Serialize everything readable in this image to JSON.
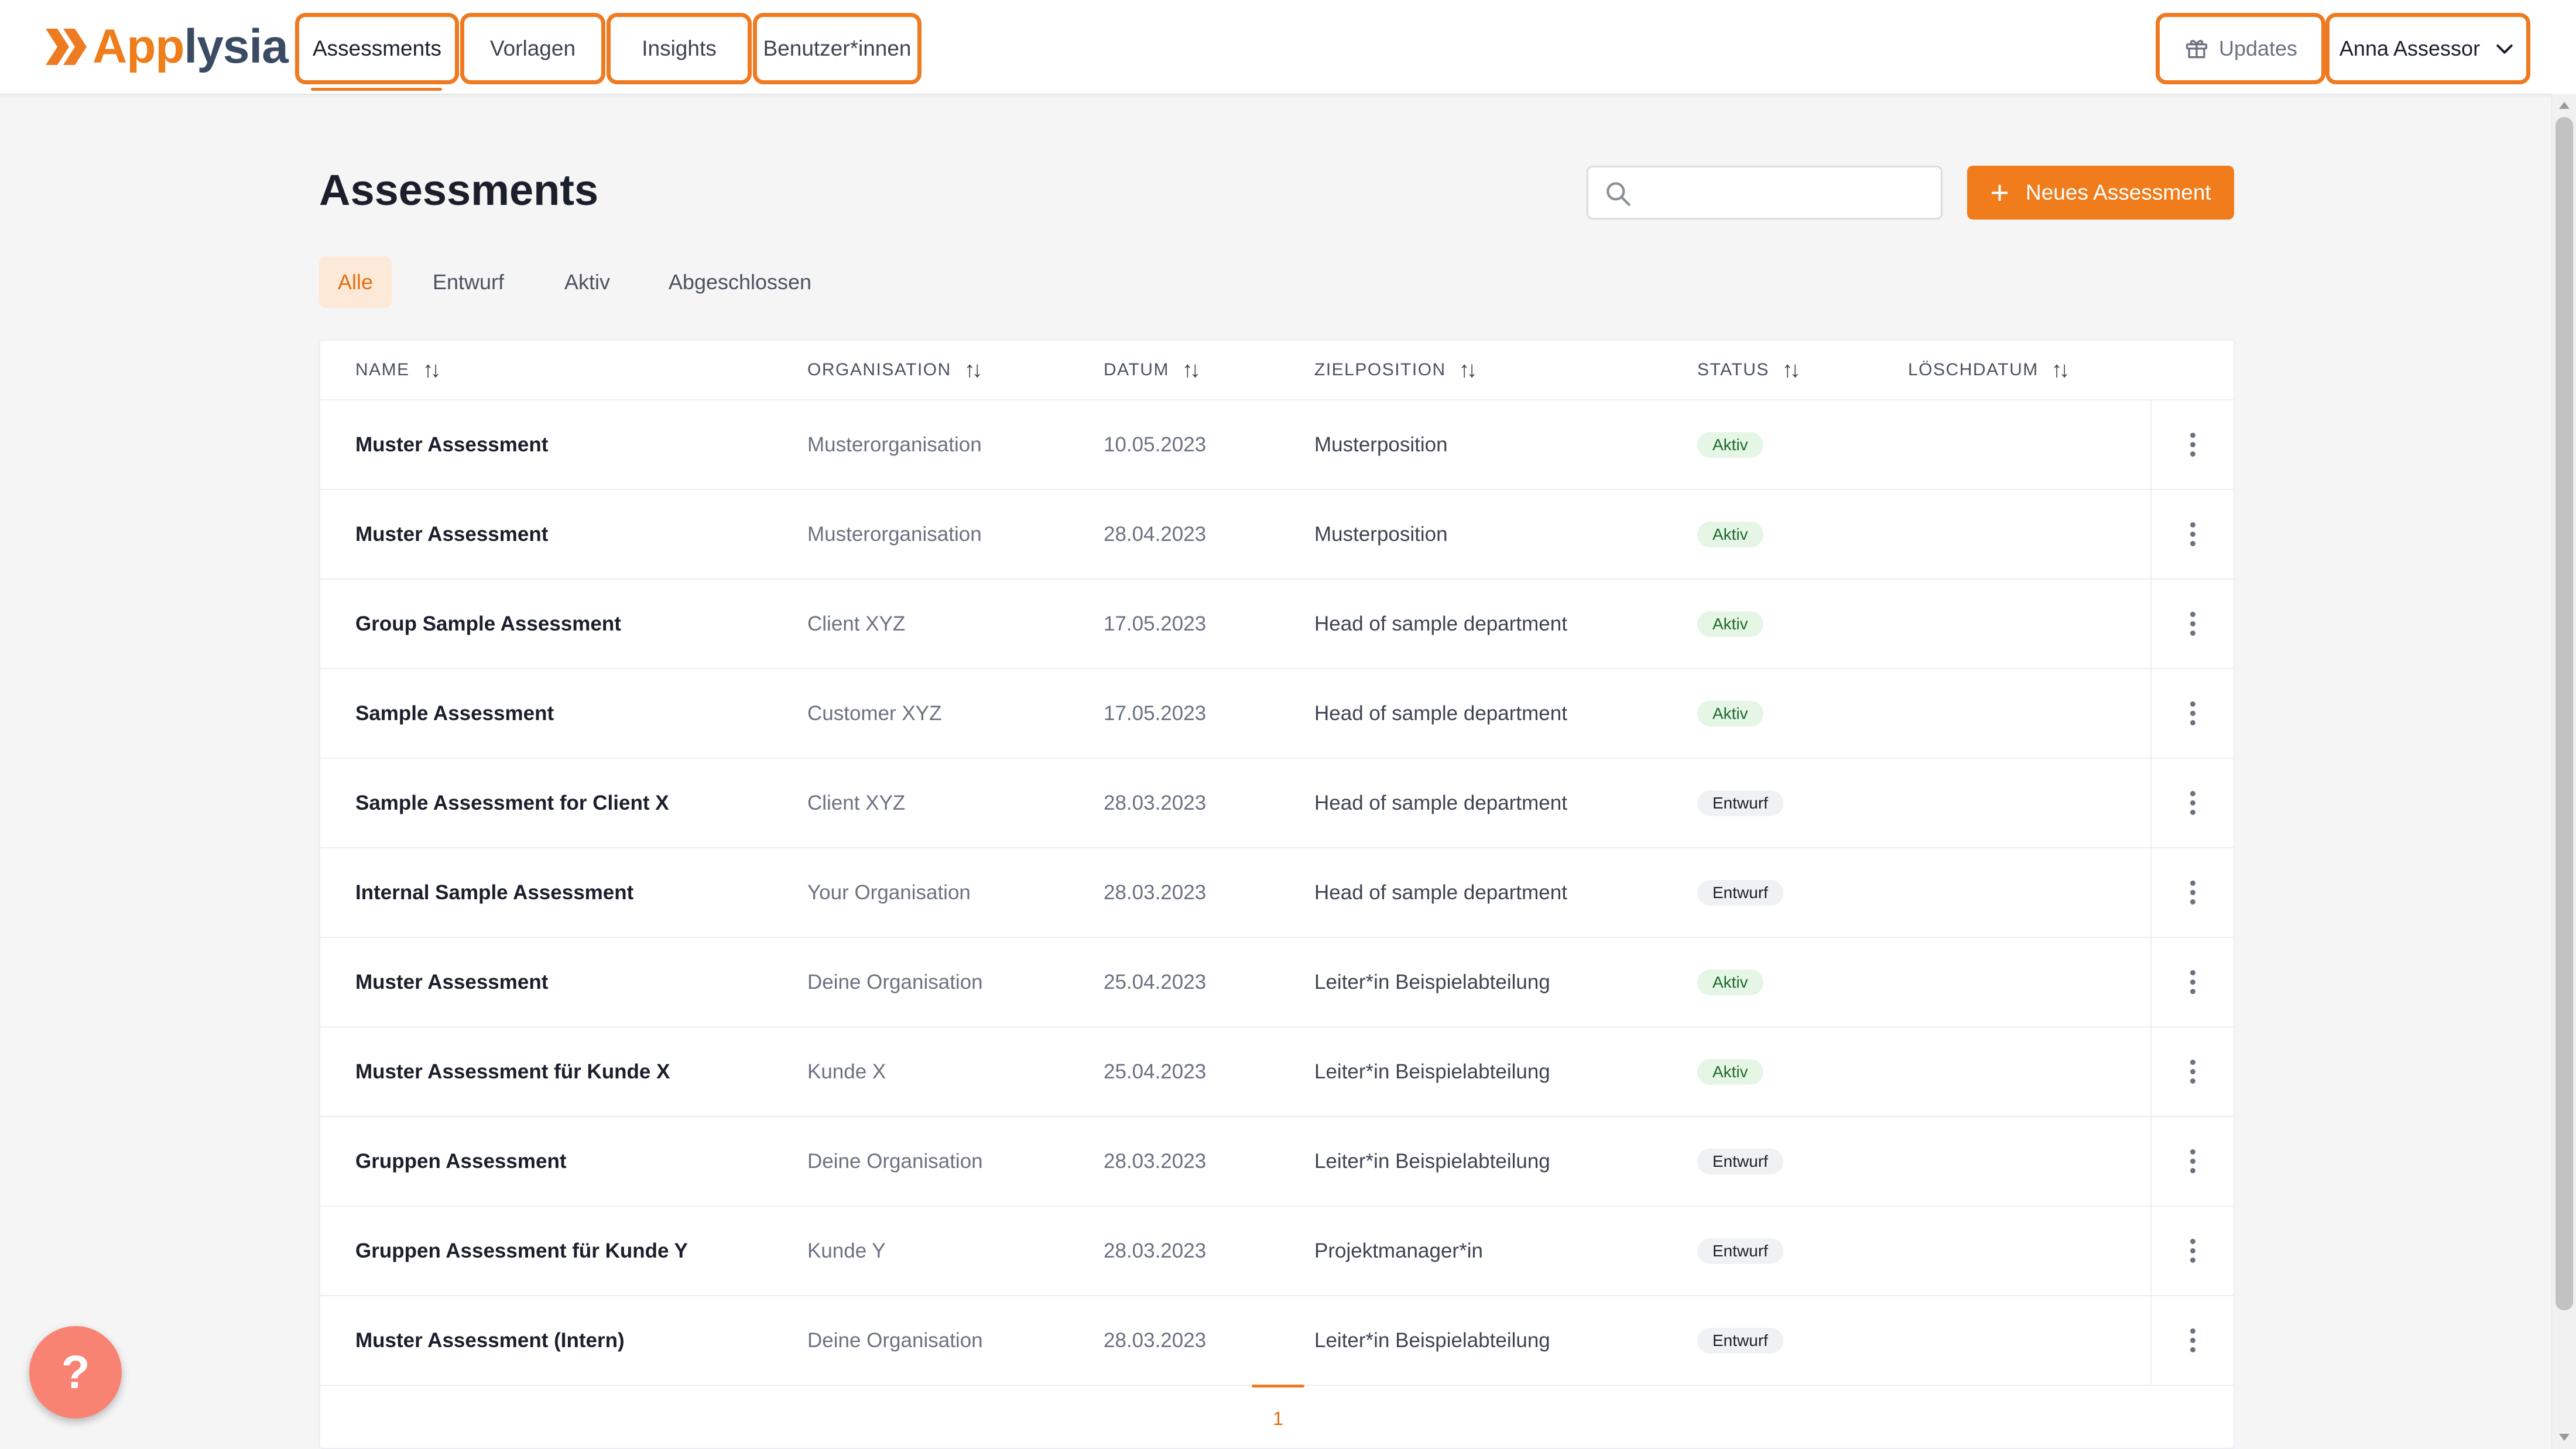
{
  "brand": {
    "name_part1": "App",
    "name_part2": "lysia",
    "accent": "#ee7b22",
    "secondary": "#3b4b63"
  },
  "nav": {
    "tabs": [
      {
        "label": "Assessments",
        "active": true
      },
      {
        "label": "Vorlagen",
        "active": false
      },
      {
        "label": "Insights",
        "active": false
      },
      {
        "label": "Benutzer*innen",
        "active": false
      }
    ]
  },
  "header": {
    "updates_label": "Updates",
    "updates_icon": "gift-icon",
    "user_name": "Anna Assessor",
    "user_menu_icon": "chevron-down-icon"
  },
  "page": {
    "title": "Assessments",
    "search": {
      "value": "",
      "placeholder": ""
    },
    "new_button_label": "Neues Assessment",
    "filters": [
      {
        "label": "Alle",
        "active": true
      },
      {
        "label": "Entwurf",
        "active": false
      },
      {
        "label": "Aktiv",
        "active": false
      },
      {
        "label": "Abgeschlossen",
        "active": false
      }
    ]
  },
  "table": {
    "columns": [
      "NAME",
      "ORGANISATION",
      "DATUM",
      "ZIELPOSITION",
      "STATUS",
      "LÖSCHDATUM"
    ],
    "rows": [
      {
        "name": "Muster Assessment",
        "organisation": "Musterorganisation",
        "date": "10.05.2023",
        "position": "Musterposition",
        "status": "Aktiv",
        "deletion_date": ""
      },
      {
        "name": "Muster Assessment",
        "organisation": "Musterorganisation",
        "date": "28.04.2023",
        "position": "Musterposition",
        "status": "Aktiv",
        "deletion_date": ""
      },
      {
        "name": "Group Sample Assessment",
        "organisation": "Client XYZ",
        "date": "17.05.2023",
        "position": "Head of sample department",
        "status": "Aktiv",
        "deletion_date": ""
      },
      {
        "name": "Sample Assessment",
        "organisation": "Customer XYZ",
        "date": "17.05.2023",
        "position": "Head of sample department",
        "status": "Aktiv",
        "deletion_date": ""
      },
      {
        "name": "Sample Assessment for Client X",
        "organisation": "Client XYZ",
        "date": "28.03.2023",
        "position": "Head of sample department",
        "status": "Entwurf",
        "deletion_date": ""
      },
      {
        "name": "Internal Sample Assessment",
        "organisation": "Your Organisation",
        "date": "28.03.2023",
        "position": "Head of sample department",
        "status": "Entwurf",
        "deletion_date": ""
      },
      {
        "name": "Muster Assessment",
        "organisation": "Deine Organisation",
        "date": "25.04.2023",
        "position": "Leiter*in Beispielabteilung",
        "status": "Aktiv",
        "deletion_date": ""
      },
      {
        "name": "Muster Assessment für Kunde X",
        "organisation": "Kunde X",
        "date": "25.04.2023",
        "position": "Leiter*in Beispielabteilung",
        "status": "Aktiv",
        "deletion_date": ""
      },
      {
        "name": "Gruppen Assessment",
        "organisation": "Deine Organisation",
        "date": "28.03.2023",
        "position": "Leiter*in Beispielabteilung",
        "status": "Entwurf",
        "deletion_date": ""
      },
      {
        "name": "Gruppen Assessment für Kunde Y",
        "organisation": "Kunde Y",
        "date": "28.03.2023",
        "position": "Projektmanager*in",
        "status": "Entwurf",
        "deletion_date": ""
      },
      {
        "name": "Muster Assessment (Intern)",
        "organisation": "Deine Organisation",
        "date": "28.03.2023",
        "position": "Leiter*in Beispielabteilung",
        "status": "Entwurf",
        "deletion_date": ""
      }
    ]
  },
  "pagination": {
    "current_page": "1"
  },
  "help": {
    "label": "?"
  }
}
